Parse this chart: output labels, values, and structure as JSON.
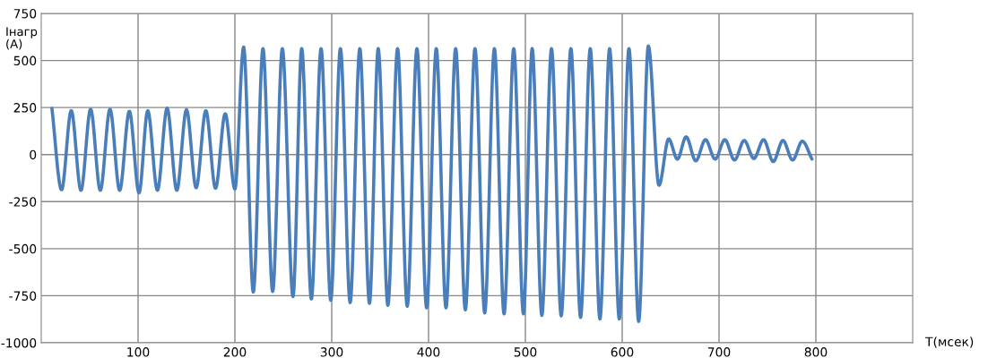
{
  "chart_data": {
    "type": "line",
    "xlabel": "T(мсек)",
    "ylabel": "Iнагр\n(A)",
    "x": [
      11,
      21,
      31,
      41,
      51,
      61,
      71,
      81,
      91,
      101,
      110,
      120,
      130,
      140,
      150,
      160,
      170,
      180,
      190,
      200,
      209,
      219,
      229,
      239,
      249,
      260,
      269,
      279,
      289,
      299,
      309,
      319,
      329,
      339,
      348,
      358,
      368,
      378,
      388,
      398,
      408,
      418,
      428,
      438,
      448,
      458,
      468,
      478,
      488,
      498,
      507,
      517,
      527,
      537,
      547,
      557,
      567,
      577,
      587,
      597,
      607,
      617,
      627,
      638,
      648,
      657,
      666,
      676,
      686,
      696,
      706,
      716,
      726,
      736,
      746,
      756,
      766,
      776,
      786,
      796
    ],
    "series": [
      {
        "color": "#4a7ebb",
        "values": [
          246,
          -187,
          233,
          -190,
          241,
          -190,
          241,
          -190,
          230,
          -203,
          233,
          -190,
          246,
          -190,
          238,
          -176,
          233,
          -179,
          217,
          -183,
          571,
          -730,
          563,
          -727,
          563,
          -754,
          563,
          -767,
          563,
          -774,
          563,
          -786,
          563,
          -790,
          563,
          -801,
          563,
          -806,
          563,
          -814,
          563,
          -814,
          563,
          -825,
          563,
          -841,
          563,
          -846,
          563,
          -846,
          563,
          -854,
          563,
          -857,
          563,
          -865,
          563,
          -873,
          563,
          -873,
          563,
          -886,
          577,
          -163,
          83,
          -24,
          94,
          -33,
          79,
          -24,
          79,
          -29,
          75,
          -21,
          79,
          -37,
          75,
          -29,
          71,
          -24
        ]
      }
    ],
    "xlim": [
      0,
      900
    ],
    "xticks": [
      100,
      200,
      300,
      400,
      500,
      600,
      700,
      800
    ],
    "ylim": [
      -1000,
      750
    ],
    "yticks": [
      -1000,
      -750,
      -500,
      -250,
      0,
      250,
      500,
      750
    ],
    "grid": true,
    "legend": false,
    "marker": "none",
    "line_style": "solid"
  }
}
